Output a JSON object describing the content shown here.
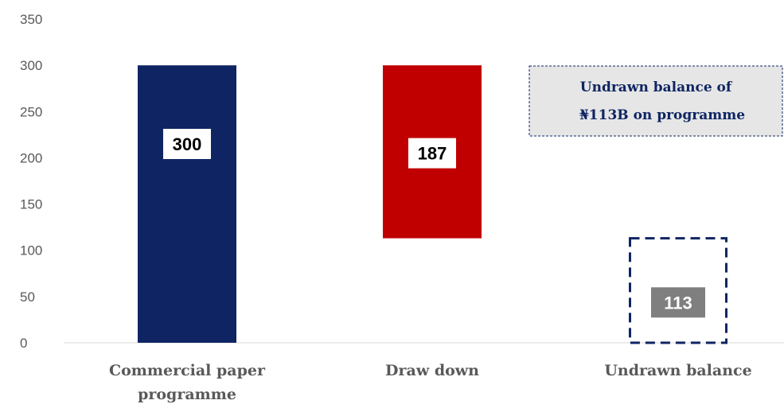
{
  "chart_data": {
    "type": "bar",
    "subtype": "waterfall",
    "categories": [
      "Commercial paper programme",
      "Draw down",
      "Undrawn balance"
    ],
    "category_lines": [
      [
        "Commercial paper",
        "programme"
      ],
      [
        "Draw down"
      ],
      [
        "Undrawn balance"
      ]
    ],
    "values": [
      300,
      187,
      113
    ],
    "bar_ranges": [
      [
        0,
        300
      ],
      [
        113,
        300
      ],
      [
        0,
        113
      ]
    ],
    "data_labels": [
      "300",
      "187",
      "113"
    ],
    "ylim": [
      0,
      350
    ],
    "yticks": [
      0,
      50,
      100,
      150,
      200,
      250,
      300,
      350
    ],
    "grid": false,
    "legend": "none",
    "colors": {
      "programme": "#0f2563",
      "drawdown": "#c00000",
      "undrawn_outline": "#0f2563",
      "undrawn_label_bg": "#7f7f7f"
    },
    "annotation": {
      "lines": [
        "Undrawn balance of",
        "₦113B on programme"
      ]
    }
  }
}
